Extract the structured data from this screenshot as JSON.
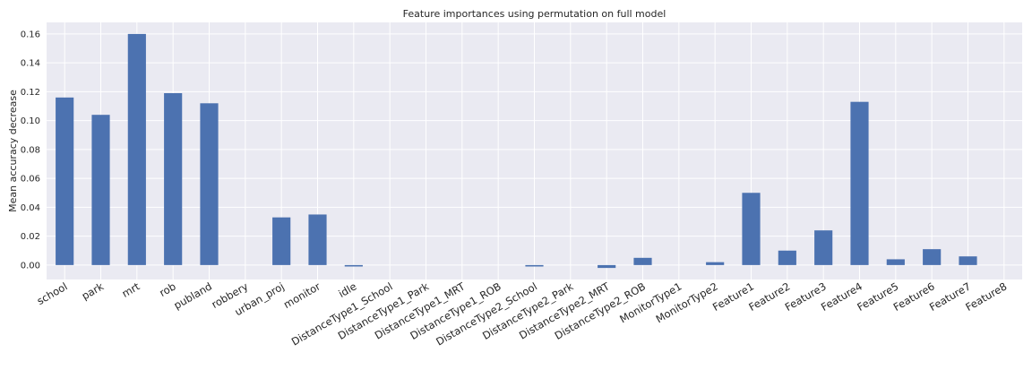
{
  "chart_data": {
    "type": "bar",
    "title": "Feature importances using permutation on full model",
    "xlabel": "",
    "ylabel": "Mean accuracy decrease",
    "categories": [
      "school",
      "park",
      "mrt",
      "rob",
      "publand",
      "robbery",
      "urban_proj",
      "monitor",
      "idle",
      "DistanceType1_School",
      "DistanceType1_Park",
      "DistanceType1_MRT",
      "DistanceType1_ROB",
      "DistanceType2_School",
      "DistanceType2_Park",
      "DistanceType2_MRT",
      "DistanceType2_ROB",
      "MonitorType1",
      "MonitorType2",
      "Feature1",
      "Feature2",
      "Feature3",
      "Feature4",
      "Feature5",
      "Feature6",
      "Feature7",
      "Feature8"
    ],
    "values": [
      0.116,
      0.104,
      0.16,
      0.119,
      0.112,
      0.0,
      0.033,
      0.035,
      -0.001,
      0.0,
      0.0,
      0.0,
      0.0,
      -0.001,
      0.0,
      -0.002,
      0.005,
      0.0,
      0.002,
      0.05,
      0.01,
      0.024,
      0.113,
      0.004,
      0.011,
      0.006,
      0.0
    ],
    "yticks": [
      "0.00",
      "0.02",
      "0.04",
      "0.06",
      "0.08",
      "0.10",
      "0.12",
      "0.14",
      "0.16"
    ],
    "ylim": [
      -0.01,
      0.168
    ],
    "grid": true,
    "bar_color": "#4c72b0",
    "background_color": "#eaeaf2",
    "grid_color": "#ffffff"
  }
}
